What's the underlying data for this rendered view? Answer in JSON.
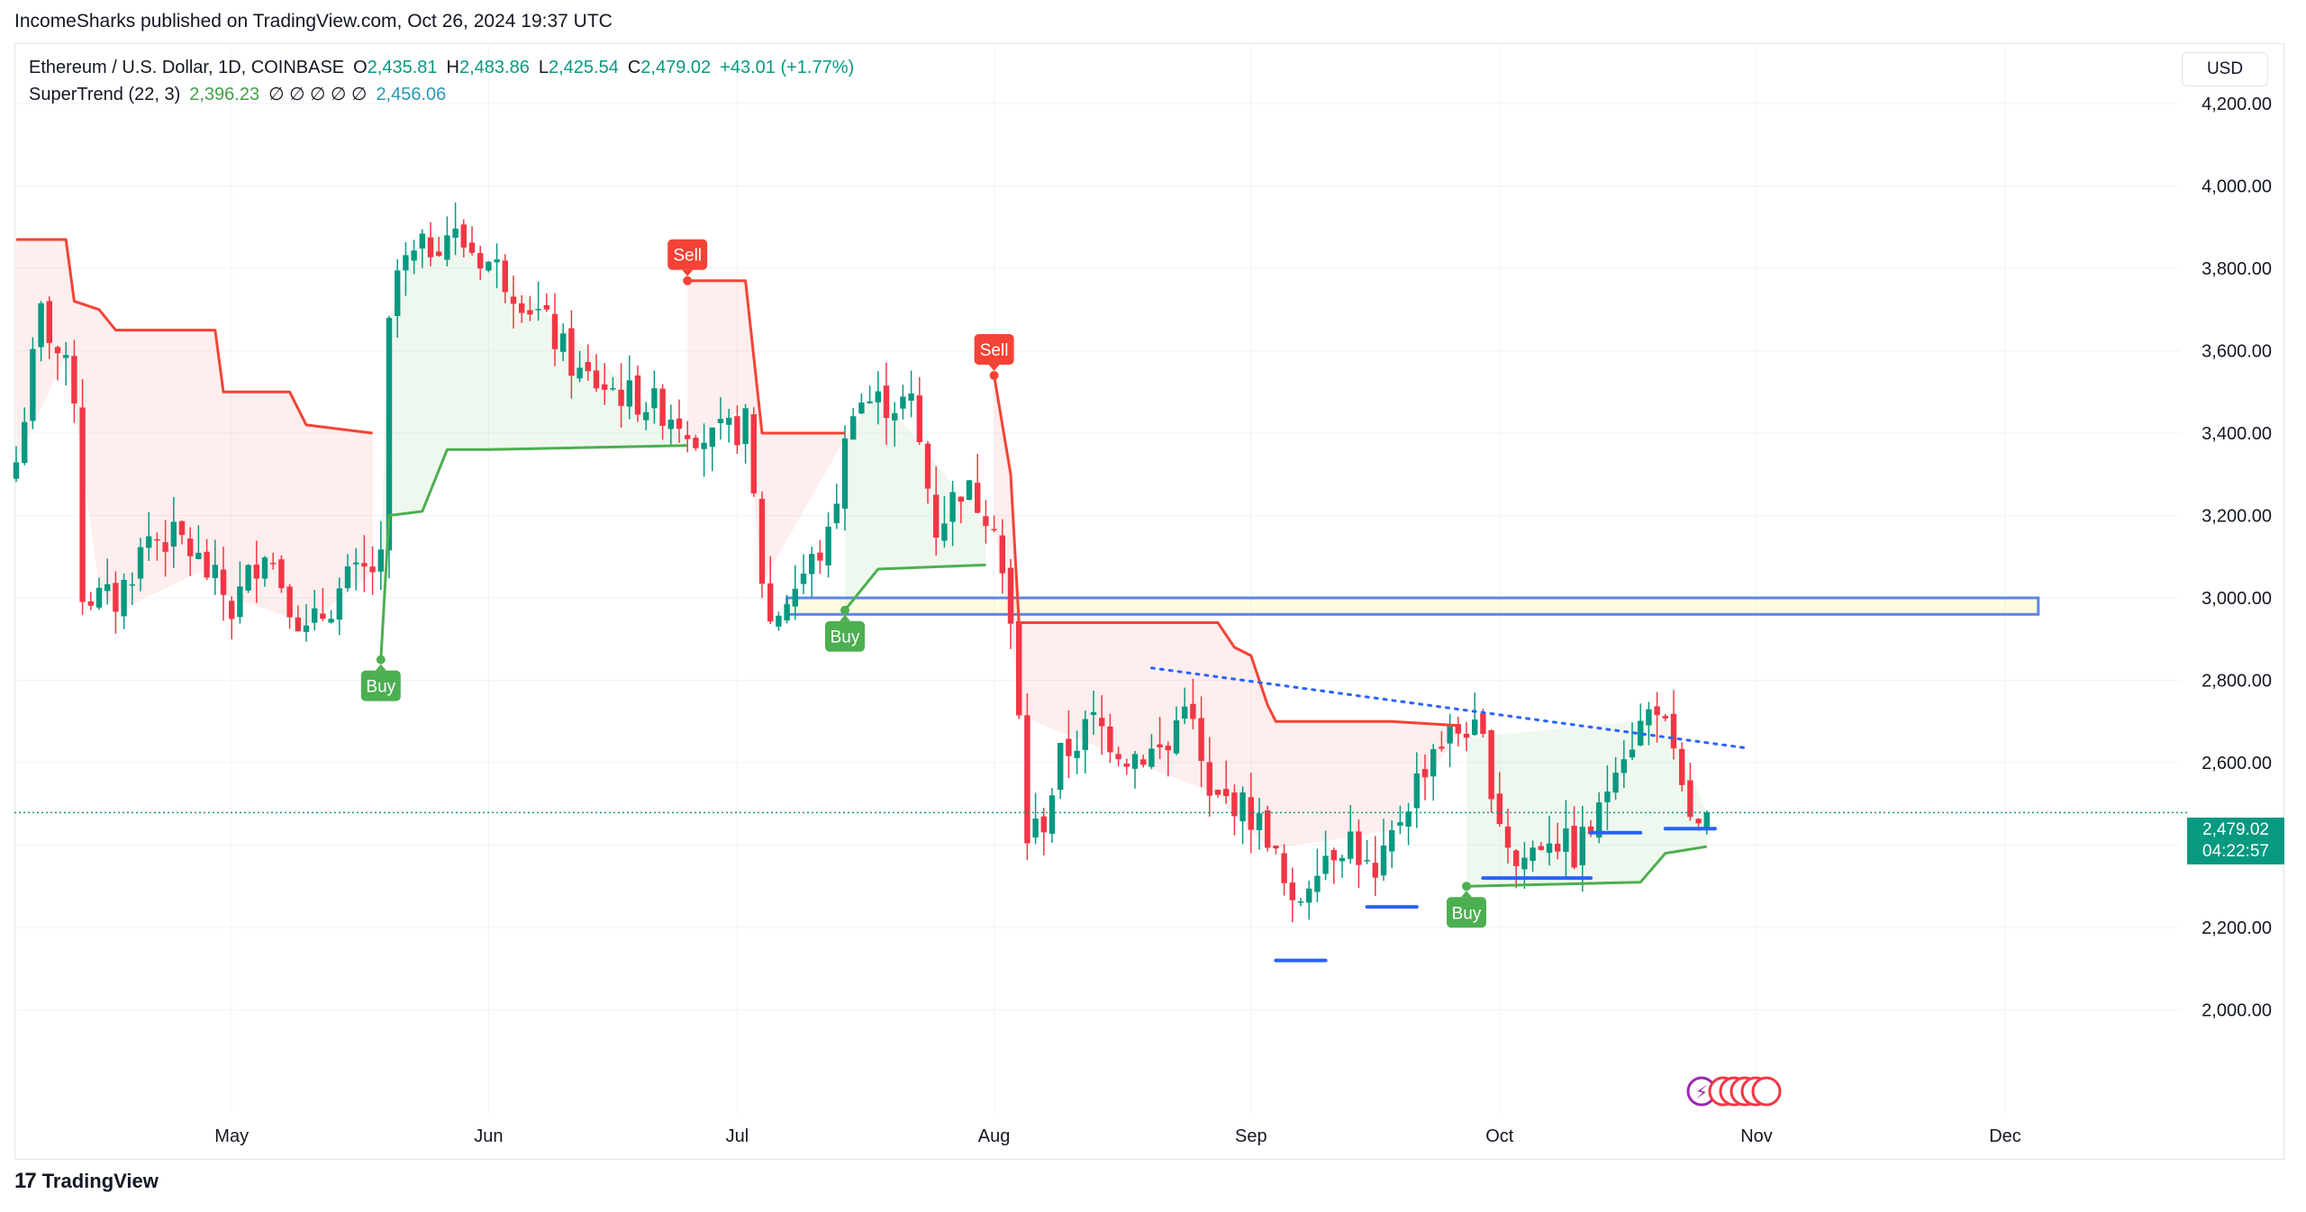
{
  "header": {
    "publisher": "IncomeSharks published on TradingView.com, Oct 26, 2024 19:37 UTC"
  },
  "legend": {
    "symbol": "Ethereum / U.S. Dollar, 1D, COINBASE",
    "o_label": "O",
    "o_value": "2,435.81",
    "h_label": "H",
    "h_value": "2,483.86",
    "l_label": "L",
    "l_value": "2,425.54",
    "c_label": "C",
    "c_value": "2,479.02",
    "change": "+43.01 (+1.77%)",
    "indicator": "SuperTrend (22, 3)",
    "ind_value1": "2,396.23",
    "ind_empty": "∅ ∅ ∅ ∅ ∅",
    "ind_value2": "2,456.06"
  },
  "currency_button": "USD",
  "last_price": {
    "price": "2,479.02",
    "countdown": "04:22:57"
  },
  "footer": {
    "brand": "TradingView"
  },
  "colors": {
    "up": "#089981",
    "down": "#f23645",
    "st_up": "#4caf50",
    "st_down": "#f44336",
    "box": "#5b86e5",
    "line": "#2962ff"
  },
  "chart_data": {
    "type": "candlestick",
    "symbol": "ETHUSD",
    "timeframe": "1D",
    "ylim": [
      1800,
      4300
    ],
    "yticks": [
      {
        "value": 2000,
        "label": "2,000.00"
      },
      {
        "value": 2200,
        "label": "2,200.00"
      },
      {
        "value": 2400,
        "label": "2,400.00"
      },
      {
        "value": 2600,
        "label": "2,600.00"
      },
      {
        "value": 2800,
        "label": "2,800.00"
      },
      {
        "value": 3000,
        "label": "3,000.00"
      },
      {
        "value": 3200,
        "label": "3,200.00"
      },
      {
        "value": 3400,
        "label": "3,400.00"
      },
      {
        "value": 3600,
        "label": "3,600.00"
      },
      {
        "value": 3800,
        "label": "3,800.00"
      },
      {
        "value": 4000,
        "label": "4,000.00"
      },
      {
        "value": 4200,
        "label": "4,200.00"
      }
    ],
    "xticks": [
      {
        "date": "2024-05-01",
        "label": "May"
      },
      {
        "date": "2024-06-01",
        "label": "Jun"
      },
      {
        "date": "2024-07-01",
        "label": "Jul"
      },
      {
        "date": "2024-08-01",
        "label": "Aug"
      },
      {
        "date": "2024-09-01",
        "label": "Sep"
      },
      {
        "date": "2024-10-01",
        "label": "Oct"
      },
      {
        "date": "2024-11-01",
        "label": "Nov"
      },
      {
        "date": "2024-12-01",
        "label": "Dec"
      }
    ],
    "x_start": "2024-04-05",
    "close_anchors": [
      [
        "2024-04-05",
        3330
      ],
      [
        "2024-04-08",
        3690
      ],
      [
        "2024-04-12",
        3500
      ],
      [
        "2024-04-13",
        3010
      ],
      [
        "2024-04-17",
        2990
      ],
      [
        "2024-04-21",
        3150
      ],
      [
        "2024-04-25",
        3140
      ],
      [
        "2024-04-30",
        3010
      ],
      [
        "2024-05-01",
        2970
      ],
      [
        "2024-05-05",
        3130
      ],
      [
        "2024-05-10",
        2910
      ],
      [
        "2024-05-15",
        3040
      ],
      [
        "2024-05-19",
        3080
      ],
      [
        "2024-05-20",
        3650
      ],
      [
        "2024-05-21",
        3790
      ],
      [
        "2024-05-27",
        3890
      ],
      [
        "2024-06-02",
        3800
      ],
      [
        "2024-06-07",
        3690
      ],
      [
        "2024-06-12",
        3540
      ],
      [
        "2024-06-18",
        3490
      ],
      [
        "2024-06-23",
        3450
      ],
      [
        "2024-06-28",
        3380
      ],
      [
        "2024-07-02",
        3420
      ],
      [
        "2024-07-04",
        3050
      ],
      [
        "2024-07-05",
        2940
      ],
      [
        "2024-07-08",
        3030
      ],
      [
        "2024-07-12",
        3140
      ],
      [
        "2024-07-15",
        3480
      ],
      [
        "2024-07-22",
        3470
      ],
      [
        "2024-07-25",
        3170
      ],
      [
        "2024-07-28",
        3270
      ],
      [
        "2024-08-01",
        3200
      ],
      [
        "2024-08-03",
        2920
      ],
      [
        "2024-08-04",
        2700
      ],
      [
        "2024-08-05",
        2420
      ],
      [
        "2024-08-07",
        2460
      ],
      [
        "2024-08-09",
        2610
      ],
      [
        "2024-08-13",
        2700
      ],
      [
        "2024-08-17",
        2620
      ],
      [
        "2024-08-22",
        2630
      ],
      [
        "2024-08-24",
        2770
      ],
      [
        "2024-08-27",
        2500
      ],
      [
        "2024-08-30",
        2510
      ],
      [
        "2024-09-03",
        2430
      ],
      [
        "2024-09-06",
        2230
      ],
      [
        "2024-09-09",
        2370
      ],
      [
        "2024-09-13",
        2420
      ],
      [
        "2024-09-16",
        2300
      ],
      [
        "2024-09-19",
        2470
      ],
      [
        "2024-09-23",
        2640
      ],
      [
        "2024-09-27",
        2690
      ],
      [
        "2024-09-29",
        2640
      ],
      [
        "2024-10-01",
        2470
      ],
      [
        "2024-10-03",
        2350
      ],
      [
        "2024-10-07",
        2430
      ],
      [
        "2024-10-10",
        2380
      ],
      [
        "2024-10-13",
        2470
      ],
      [
        "2024-10-15",
        2620
      ],
      [
        "2024-10-17",
        2660
      ],
      [
        "2024-10-20",
        2750
      ],
      [
        "2024-10-23",
        2520
      ],
      [
        "2024-10-25",
        2430
      ],
      [
        "2024-10-26",
        2479.02
      ]
    ],
    "last_candle": {
      "date": "2024-10-26",
      "open": 2435.81,
      "high": 2483.86,
      "low": 2425.54,
      "close": 2479.02
    },
    "supertrend": {
      "name": "SuperTrend (22, 3)",
      "down_segments": [
        [
          [
            "2024-04-05",
            3870
          ],
          [
            "2024-04-11",
            3870
          ],
          [
            "2024-04-12",
            3720
          ],
          [
            "2024-04-15",
            3700
          ],
          [
            "2024-04-17",
            3650
          ],
          [
            "2024-04-29",
            3650
          ],
          [
            "2024-04-30",
            3500
          ],
          [
            "2024-05-08",
            3500
          ],
          [
            "2024-05-10",
            3420
          ],
          [
            "2024-05-18",
            3400
          ]
        ],
        [
          [
            "2024-06-25",
            3770
          ],
          [
            "2024-07-02",
            3770
          ],
          [
            "2024-07-04",
            3400
          ],
          [
            "2024-07-14",
            3400
          ]
        ],
        [
          [
            "2024-08-01",
            3540
          ],
          [
            "2024-08-03",
            3300
          ],
          [
            "2024-08-04",
            2940
          ],
          [
            "2024-08-28",
            2940
          ],
          [
            "2024-08-30",
            2880
          ],
          [
            "2024-09-01",
            2860
          ],
          [
            "2024-09-03",
            2740
          ],
          [
            "2024-09-04",
            2700
          ],
          [
            "2024-09-18",
            2700
          ],
          [
            "2024-09-26",
            2690
          ]
        ]
      ],
      "up_segments": [
        [
          [
            "2024-05-19",
            2850
          ],
          [
            "2024-05-20",
            3200
          ],
          [
            "2024-05-24",
            3210
          ],
          [
            "2024-05-27",
            3360
          ],
          [
            "2024-06-01",
            3360
          ],
          [
            "2024-06-25",
            3370
          ]
        ],
        [
          [
            "2024-07-14",
            2970
          ],
          [
            "2024-07-18",
            3070
          ],
          [
            "2024-07-31",
            3080
          ]
        ],
        [
          [
            "2024-09-27",
            2300
          ],
          [
            "2024-10-18",
            2310
          ],
          [
            "2024-10-21",
            2380
          ],
          [
            "2024-10-26",
            2396.23
          ]
        ]
      ],
      "labels": [
        {
          "text": "Buy",
          "date": "2024-05-19",
          "price": 2850,
          "side": "buy"
        },
        {
          "text": "Sell",
          "date": "2024-06-25",
          "price": 3770,
          "side": "sell"
        },
        {
          "text": "Buy",
          "date": "2024-07-14",
          "price": 2970,
          "side": "buy"
        },
        {
          "text": "Sell",
          "date": "2024-08-01",
          "price": 3540,
          "side": "sell"
        },
        {
          "text": "Buy",
          "date": "2024-09-27",
          "price": 2300,
          "side": "buy"
        }
      ]
    },
    "drawings": {
      "zone": {
        "date1": "2024-07-07",
        "date2": "2024-12-05",
        "price_top": 3000,
        "price_bottom": 2960
      },
      "trendline": {
        "date1": "2024-08-20",
        "price1": 2830,
        "date2": "2024-10-31",
        "price2": 2635
      },
      "support_lines": [
        {
          "date1": "2024-09-04",
          "date2": "2024-09-10",
          "price": 2120
        },
        {
          "date1": "2024-09-15",
          "date2": "2024-09-21",
          "price": 2250
        },
        {
          "date1": "2024-09-29",
          "date2": "2024-10-12",
          "price": 2320
        },
        {
          "date1": "2024-10-12",
          "date2": "2024-10-18",
          "price": 2430
        },
        {
          "date1": "2024-10-21",
          "date2": "2024-10-27",
          "price": 2440
        }
      ]
    },
    "last_price": 2479.02,
    "grid": true
  }
}
